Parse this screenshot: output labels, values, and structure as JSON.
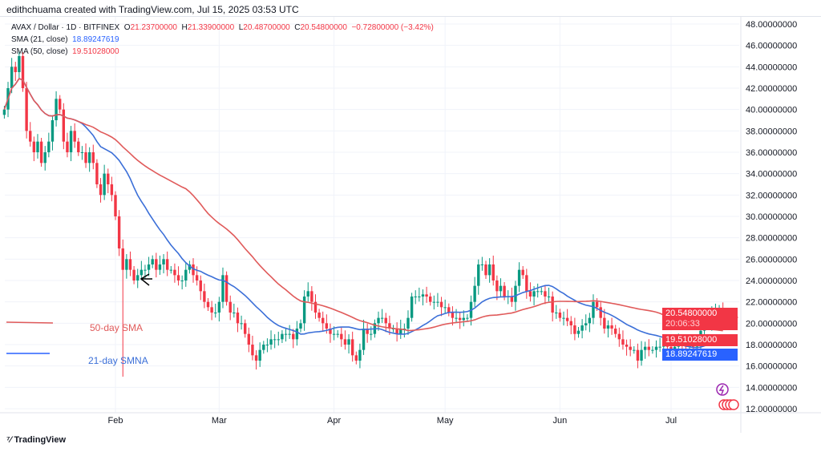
{
  "credit": "edithchuama created with TradingView.com, Jul 15, 2025 03:53 UTC",
  "legend": {
    "symbol": "AVAX / Dollar · 1D · BITFINEX",
    "o_label": "O",
    "o": "21.23700000",
    "h_label": "H",
    "h": "21.33900000",
    "l_label": "L",
    "l": "20.48700000",
    "c_label": "C",
    "c": "20.54800000",
    "change": "−0.72800000 (−3.42%)",
    "sma21_label": "SMA (21, close)",
    "sma21": "18.89247619",
    "sma50_label": "SMA (50, close)",
    "sma50": "19.51028000"
  },
  "price_labels": {
    "last": "20.54800000",
    "countdown": "20:06:33",
    "sma50": "19.51028000",
    "sma21": "18.89247619"
  },
  "annotations": {
    "sma50": "50-day SMA",
    "sma21": "21-day SMNA"
  },
  "logo": "TradingView",
  "colors": {
    "up": "#089981",
    "down": "#f23645",
    "sma21": "#3b6fd8",
    "sma50": "#e05a5a"
  },
  "chart_data": {
    "type": "candlestick",
    "start_date": "2025-01-02",
    "ylim": [
      12,
      48
    ],
    "yticks": [
      "48.00000000",
      "46.00000000",
      "44.00000000",
      "42.00000000",
      "40.00000000",
      "38.00000000",
      "36.00000000",
      "34.00000000",
      "32.00000000",
      "30.00000000",
      "28.00000000",
      "26.00000000",
      "24.00000000",
      "22.00000000",
      "20.00000000",
      "18.00000000",
      "16.00000000",
      "14.00000000",
      "12.00000000"
    ],
    "xticks": [
      {
        "label": "Feb",
        "doy": 32
      },
      {
        "label": "Mar",
        "doy": 60
      },
      {
        "label": "Apr",
        "doy": 91
      },
      {
        "label": "May",
        "doy": 121
      },
      {
        "label": "Jun",
        "doy": 152
      },
      {
        "label": "Jul",
        "doy": 182
      }
    ],
    "first_open": 39.5,
    "closes": [
      40,
      42,
      44,
      43.5,
      45,
      42,
      38,
      37,
      36,
      37,
      35,
      36,
      37,
      39,
      41,
      40,
      37,
      36,
      38,
      37,
      36,
      36,
      35,
      36,
      35,
      33,
      32,
      34,
      33,
      32,
      30,
      27,
      25,
      26,
      25,
      24,
      24.5,
      25,
      25,
      25.5,
      26,
      25,
      25.5,
      26,
      25,
      25,
      24.5,
      24,
      24,
      25,
      25.5,
      24.5,
      24,
      23,
      22,
      21.5,
      21,
      21,
      22,
      24.5,
      22,
      21,
      21,
      20,
      20,
      19,
      18,
      17,
      16.5,
      17.5,
      18,
      18,
      18.5,
      18.5,
      18.5,
      19,
      19,
      19,
      18.5,
      19.5,
      20,
      22.5,
      23,
      22,
      21,
      20.5,
      20,
      19.5,
      19,
      19,
      19,
      18.5,
      18,
      18.5,
      17,
      16.5,
      17.5,
      19.5,
      19,
      19,
      20,
      20.5,
      20.5,
      20,
      19.5,
      19.5,
      19,
      19.5,
      19.5,
      20.5,
      22.5,
      22.5,
      22.5,
      22.7,
      22.5,
      22,
      22,
      22,
      21.5,
      21.5,
      21,
      20.5,
      20.5,
      20.3,
      20.5,
      20.5,
      22,
      23.5,
      25.5,
      25.5,
      24.5,
      25.5,
      24,
      23,
      23.5,
      22.5,
      22.5,
      22,
      23.5,
      25,
      24.5,
      23,
      22.5,
      23,
      23,
      23,
      22.5,
      22.5,
      21,
      21,
      20.5,
      20.5,
      20.2,
      19.8,
      19,
      19.3,
      19.8,
      20,
      20.5,
      22,
      21.5,
      20.5,
      19.5,
      19.8,
      19.5,
      19,
      18.5,
      18,
      17.8,
      17.5,
      17.5,
      16.5,
      17.5,
      17.8,
      17.5,
      17.5,
      17.8,
      17.8,
      18,
      17.8,
      17.3,
      17.8,
      18.2,
      18,
      17.8,
      18,
      17.8,
      18,
      19.3,
      20,
      20,
      21,
      21,
      21.237,
      20.548
    ],
    "wick_overrides": [
      {
        "date": "2025-02-03",
        "low": 15
      },
      {
        "date": "2025-01-06",
        "high": 45.5
      }
    ],
    "series": [
      {
        "name": "SMA (21, close)",
        "period": 21
      },
      {
        "name": "SMA (50, close)",
        "period": 50
      }
    ]
  }
}
